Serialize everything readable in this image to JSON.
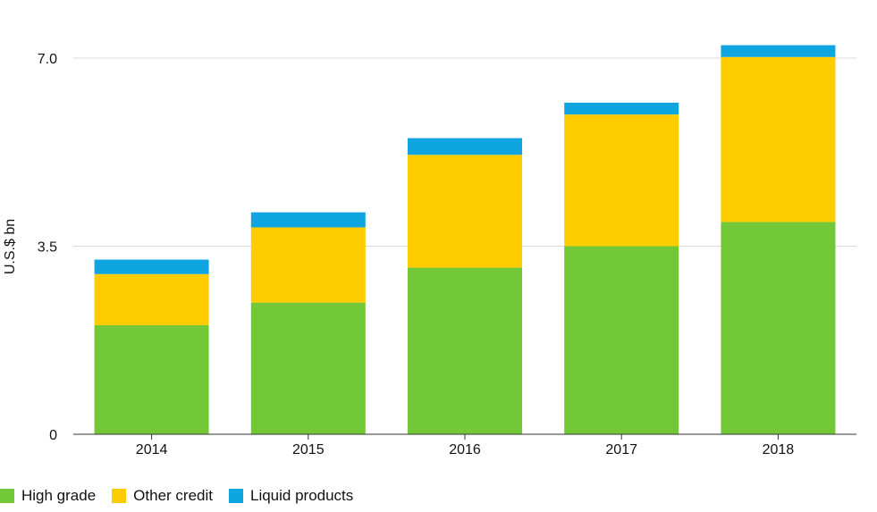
{
  "chart_data": {
    "type": "bar",
    "stacked": true,
    "categories": [
      "2014",
      "2015",
      "2016",
      "2017",
      "2018"
    ],
    "series": [
      {
        "name": "High grade",
        "color": "#72c837",
        "values": [
          2.03,
          2.45,
          3.1,
          3.5,
          3.95
        ]
      },
      {
        "name": "Other credit",
        "color": "#ffcc00",
        "values": [
          0.95,
          1.4,
          2.1,
          2.45,
          3.07
        ]
      },
      {
        "name": "Liquid products",
        "color": "#0fa5e0",
        "values": [
          0.27,
          0.28,
          0.31,
          0.22,
          0.22
        ]
      }
    ],
    "ylabel": "U.S.$ bn",
    "yticks": [
      {
        "value": 0,
        "label": "0"
      },
      {
        "value": 3.5,
        "label": "3.5"
      },
      {
        "value": 7.0,
        "label": "7.0"
      }
    ],
    "ylim": [
      0,
      7.0
    ],
    "grid": true,
    "legend": "bottom-left"
  }
}
